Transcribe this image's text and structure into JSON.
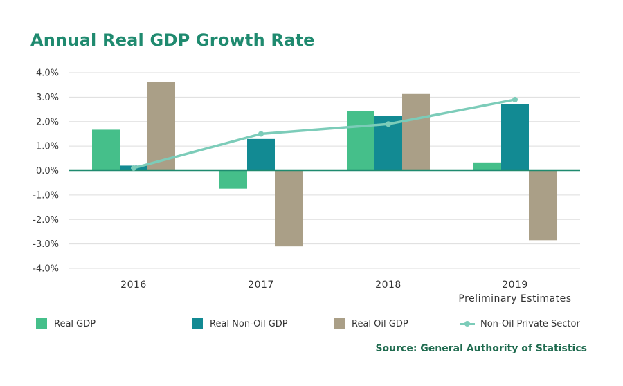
{
  "title": "Annual Real GDP Growth Rate",
  "source": "Source: General Authority of Statistics",
  "colors": {
    "real_gdp": "#45bf8a",
    "real_non_oil_gdp": "#128a93",
    "real_oil_gdp": "#aa9f87",
    "non_oil_private": "#7cccb9",
    "title": "#1f8a6f",
    "grid": "#dddddd",
    "zero": "#1f8a6f"
  },
  "chart_data": {
    "type": "bar",
    "title": "Annual Real GDP Growth Rate",
    "categories": [
      "2016",
      "2017",
      "2018",
      "2019"
    ],
    "category_sublabels": [
      "",
      "",
      "",
      "Preliminary Estimates"
    ],
    "ylim": [
      -4.0,
      4.0
    ],
    "yticks": [
      "4.0%",
      "3.0%",
      "2.0%",
      "1.0%",
      "0.0%",
      "-1.0%",
      "-2.0%",
      "-3.0%",
      "-4.0%"
    ],
    "ytick_values": [
      4,
      3,
      2,
      1,
      0,
      -1,
      -2,
      -3,
      -4
    ],
    "grid": true,
    "legend_position": "bottom",
    "series": [
      {
        "name": "Real GDP",
        "kind": "bar",
        "values": [
          1.67,
          -0.74,
          2.43,
          0.33
        ]
      },
      {
        "name": "Real Non-Oil GDP",
        "kind": "bar",
        "values": [
          0.2,
          1.29,
          2.22,
          2.7
        ]
      },
      {
        "name": "Real Oil GDP",
        "kind": "bar",
        "values": [
          3.62,
          -3.1,
          3.13,
          -2.85
        ]
      },
      {
        "name": "Non-Oil Private Sector",
        "kind": "line",
        "values": [
          0.1,
          1.5,
          1.9,
          2.9
        ]
      }
    ]
  }
}
